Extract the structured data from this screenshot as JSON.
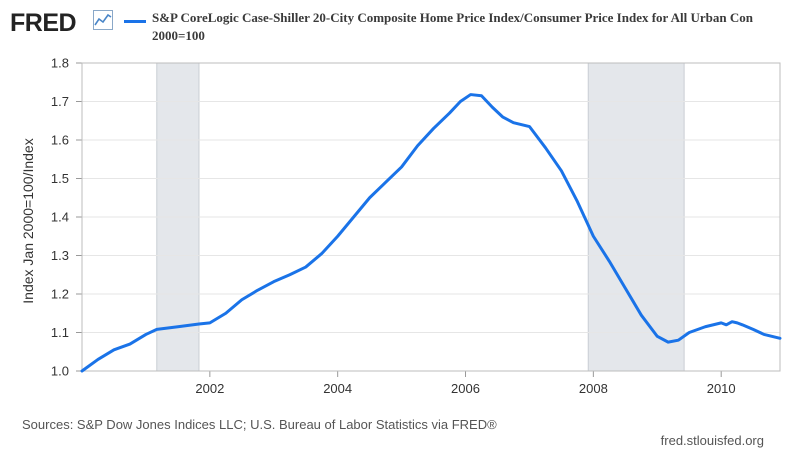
{
  "header": {
    "logo_text": "FRED",
    "logo_icon": "chart-line-icon",
    "title": "S&P CoreLogic Case-Shiller 20-City Composite Home Price Index/Consumer Price Index for All Urban Con",
    "subtitle": "2000=100"
  },
  "footer": {
    "source": "Sources: S&P Dow Jones Indices LLC; U.S. Bureau of Labor Statistics via FRED®",
    "url": "fred.stlouisfed.org"
  },
  "colors": {
    "series": "#1a73e8",
    "recession": "#e4e7eb",
    "grid": "#e6e6e6",
    "logo": "#232323"
  },
  "chart_data": {
    "type": "line",
    "title": "S&P CoreLogic Case-Shiller 20-City Composite Home Price Index/Consumer Price Index for All Urban Con 2000=100",
    "xlabel": "",
    "ylabel": "Index Jan 2000=100/Index",
    "xlim": [
      2000.0,
      2010.92
    ],
    "ylim": [
      1.0,
      1.8
    ],
    "yticks": [
      1.0,
      1.1,
      1.2,
      1.3,
      1.4,
      1.5,
      1.6,
      1.7,
      1.8
    ],
    "ytick_labels": [
      "1.0",
      "1.1",
      "1.2",
      "1.3",
      "1.4",
      "1.5",
      "1.6",
      "1.7",
      "1.8"
    ],
    "xticks": [
      2002,
      2004,
      2006,
      2008,
      2010
    ],
    "xtick_labels": [
      "2002",
      "2004",
      "2006",
      "2008",
      "2010"
    ],
    "grid": "horizontal",
    "recessions": [
      [
        2001.17,
        2001.83
      ],
      [
        2007.92,
        2009.42
      ]
    ],
    "series": [
      {
        "x": [
          2000.0,
          2000.25,
          2000.5,
          2000.75,
          2001.0,
          2001.17,
          2001.5,
          2001.83,
          2002.0,
          2002.25,
          2002.5,
          2002.75,
          2003.0,
          2003.25,
          2003.5,
          2003.75,
          2004.0,
          2004.25,
          2004.5,
          2004.75,
          2005.0,
          2005.25,
          2005.5,
          2005.75,
          2005.92,
          2006.08,
          2006.25,
          2006.42,
          2006.58,
          2006.75,
          2007.0,
          2007.25,
          2007.5,
          2007.75,
          2008.0,
          2008.25,
          2008.5,
          2008.75,
          2009.0,
          2009.17,
          2009.33,
          2009.5,
          2009.75,
          2010.0,
          2010.08,
          2010.17,
          2010.25,
          2010.33,
          2010.5,
          2010.67,
          2010.92
        ],
        "values": [
          1.0,
          1.03,
          1.055,
          1.07,
          1.095,
          1.108,
          1.115,
          1.122,
          1.125,
          1.15,
          1.185,
          1.21,
          1.232,
          1.25,
          1.27,
          1.305,
          1.35,
          1.4,
          1.45,
          1.49,
          1.53,
          1.585,
          1.63,
          1.67,
          1.7,
          1.718,
          1.715,
          1.685,
          1.66,
          1.645,
          1.635,
          1.58,
          1.52,
          1.44,
          1.35,
          1.285,
          1.215,
          1.145,
          1.09,
          1.075,
          1.08,
          1.1,
          1.115,
          1.125,
          1.12,
          1.128,
          1.125,
          1.12,
          1.108,
          1.095,
          1.085
        ]
      }
    ]
  }
}
